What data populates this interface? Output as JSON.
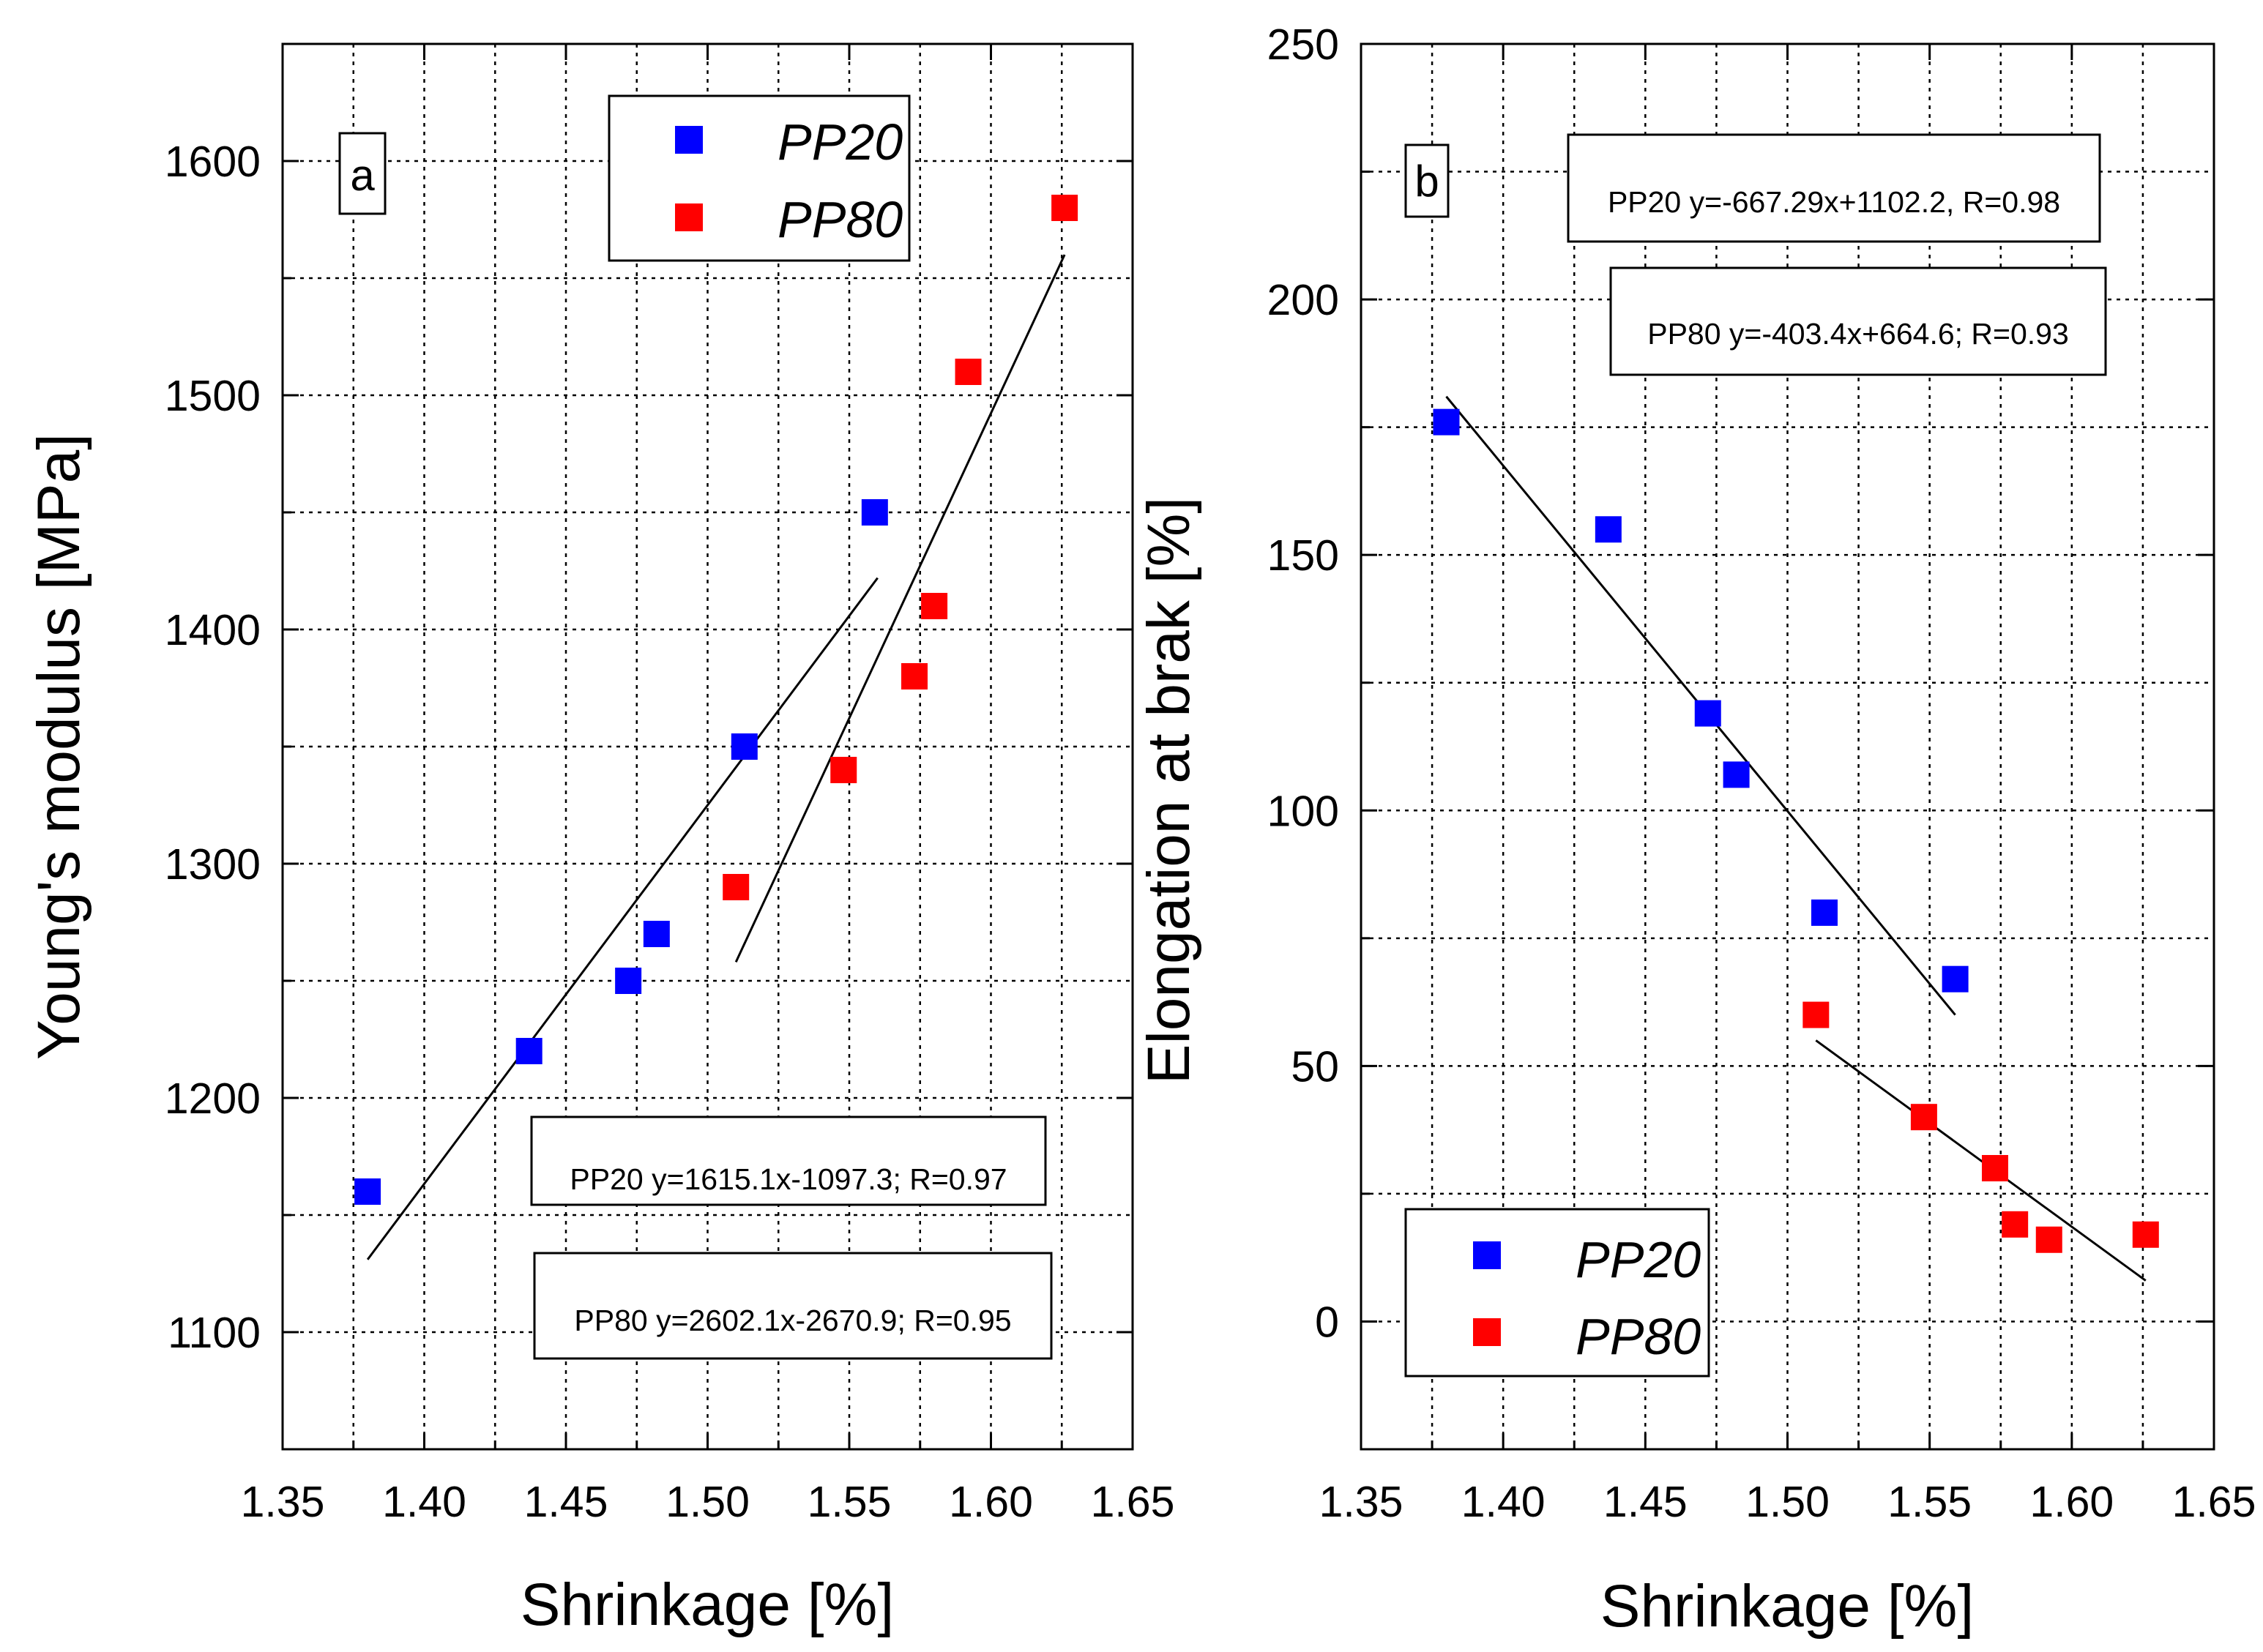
{
  "chart_data": [
    {
      "type": "scatter",
      "panel_label": "a",
      "xlabel": "Shrinkage [%]",
      "ylabel": "Young's modulus [MPa]",
      "xlim": [
        1.35,
        1.65
      ],
      "ylim": [
        1050,
        1650
      ],
      "x_ticks": [
        "1.35",
        "1.40",
        "1.45",
        "1.50",
        "1.55",
        "1.60",
        "1.65"
      ],
      "y_ticks": [
        "1100",
        "1200",
        "1300",
        "1400",
        "1500",
        "1600"
      ],
      "y_tick_values": [
        1100,
        1200,
        1300,
        1400,
        1500,
        1600
      ],
      "grid": true,
      "legend_position": "top",
      "series": [
        {
          "name": "PP20",
          "color": "#0000ff",
          "x": [
            1.38,
            1.437,
            1.472,
            1.482,
            1.513,
            1.559
          ],
          "y": [
            1160,
            1220,
            1250,
            1270,
            1350,
            1450
          ],
          "fit": {
            "x": [
              1.38,
              1.56
            ],
            "y": [
              1131,
              1422
            ]
          }
        },
        {
          "name": "PP80",
          "color": "#ff0000",
          "x": [
            1.51,
            1.548,
            1.573,
            1.58,
            1.592,
            1.626
          ],
          "y": [
            1290,
            1340,
            1380,
            1410,
            1510,
            1580
          ],
          "fit": {
            "x": [
              1.51,
              1.626
            ],
            "y": [
              1258,
              1560
            ]
          }
        }
      ],
      "annotations": [
        "PP20 y=1615.1x-1097.3; R=0.97",
        "PP80 y=2602.1x-2670.9; R=0.95"
      ]
    },
    {
      "type": "scatter",
      "panel_label": "b",
      "xlabel": "Shrinkage [%]",
      "ylabel": "Elongation at brak [%]",
      "xlim": [
        1.35,
        1.65
      ],
      "ylim": [
        -25,
        250
      ],
      "x_ticks": [
        "1.35",
        "1.40",
        "1.45",
        "1.50",
        "1.55",
        "1.60",
        "1.65"
      ],
      "y_ticks": [
        "0",
        "50",
        "100",
        "150",
        "200",
        "250"
      ],
      "y_tick_values": [
        0,
        50,
        100,
        150,
        200,
        250
      ],
      "grid": true,
      "legend_position": "bottom-left",
      "series": [
        {
          "name": "PP20",
          "color": "#0000ff",
          "x": [
            1.38,
            1.437,
            1.472,
            1.482,
            1.513,
            1.559
          ],
          "y": [
            176,
            155,
            119,
            107,
            80,
            67
          ],
          "fit": {
            "x": [
              1.38,
              1.559
            ],
            "y": [
              181,
              60
            ]
          }
        },
        {
          "name": "PP80",
          "color": "#ff0000",
          "x": [
            1.51,
            1.548,
            1.573,
            1.58,
            1.592,
            1.626
          ],
          "y": [
            60,
            40,
            30,
            19,
            16,
            17
          ],
          "fit": {
            "x": [
              1.51,
              1.626
            ],
            "y": [
              55,
              8
            ]
          }
        }
      ],
      "annotations": [
        "PP20 y=-667.29x+1102.2, R=0.98",
        "PP80 y=-403.4x+664.6; R=0.93"
      ]
    }
  ]
}
